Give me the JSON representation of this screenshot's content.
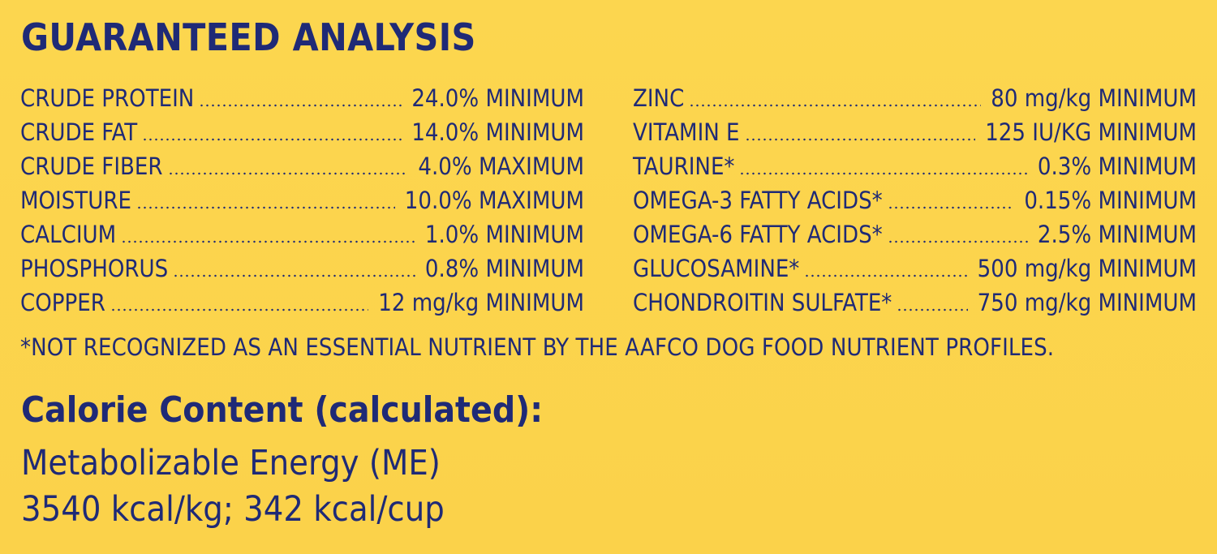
{
  "page": {
    "title": "GUARANTEED ANALYSIS",
    "background_color": "#fcd64f",
    "text_color": "#1f2a76"
  },
  "left_column": [
    {
      "label": "CRUDE PROTEIN",
      "value": "24.0% MINIMUM"
    },
    {
      "label": "CRUDE FAT",
      "value": "14.0% MINIMUM"
    },
    {
      "label": "CRUDE FIBER",
      "value": "4.0% MAXIMUM"
    },
    {
      "label": "MOISTURE",
      "value": "10.0% MAXIMUM"
    },
    {
      "label": "CALCIUM",
      "value": "1.0% MINIMUM"
    },
    {
      "label": "PHOSPHORUS",
      "value": "0.8% MINIMUM"
    },
    {
      "label": "COPPER",
      "value": "12 mg/kg MINIMUM"
    }
  ],
  "right_column": [
    {
      "label": "ZINC",
      "value": "80 mg/kg MINIMUM"
    },
    {
      "label": "VITAMIN E",
      "value": "125 IU/KG MINIMUM"
    },
    {
      "label": "TAURINE*",
      "value": "0.3% MINIMUM"
    },
    {
      "label": "OMEGA-3 FATTY ACIDS*",
      "value": "0.15% MINIMUM"
    },
    {
      "label": "OMEGA-6 FATTY ACIDS*",
      "value": "2.5% MINIMUM"
    },
    {
      "label": "GLUCOSAMINE*",
      "value": "500 mg/kg MINIMUM"
    },
    {
      "label": "CHONDROITIN SULFATE*",
      "value": "750 mg/kg MINIMUM"
    }
  ],
  "footnote": "*NOT RECOGNIZED AS AN ESSENTIAL NUTRIENT BY THE AAFCO DOG FOOD NUTRIENT PROFILES.",
  "calorie": {
    "title": "Calorie Content (calculated):",
    "line1": "Metabolizable Energy (ME)",
    "line2": "3540 kcal/kg; 342 kcal/cup"
  }
}
